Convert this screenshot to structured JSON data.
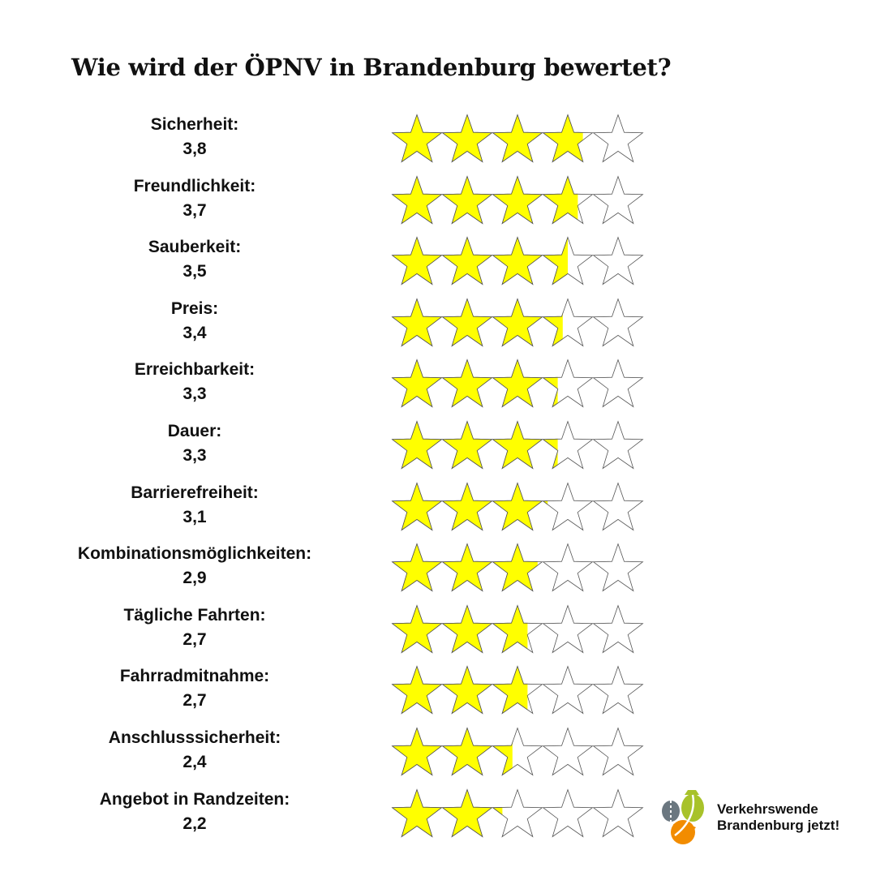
{
  "chart_data": {
    "type": "star-rating",
    "title": "Wie wird der ÖPNV in Brandenburg bewertet?",
    "max": 5,
    "colors": {
      "filled": "#ffff00",
      "empty": "#ffffff",
      "outline": "#555555"
    },
    "items": [
      {
        "label": "Sicherheit:",
        "value_text": "3,8",
        "value": 3.8
      },
      {
        "label": "Freundlichkeit:",
        "value_text": "3,7",
        "value": 3.7
      },
      {
        "label": "Sauberkeit:",
        "value_text": "3,5",
        "value": 3.5
      },
      {
        "label": "Preis:",
        "value_text": "3,4",
        "value": 3.4
      },
      {
        "label": "Erreichbarkeit:",
        "value_text": "3,3",
        "value": 3.3
      },
      {
        "label": "Dauer:",
        "value_text": "3,3",
        "value": 3.3
      },
      {
        "label": "Barrierefreiheit:",
        "value_text": "3,1",
        "value": 3.1
      },
      {
        "label": "Kombinationsmöglichkeiten:",
        "value_text": "2,9",
        "value": 2.9
      },
      {
        "label": "Tägliche Fahrten:",
        "value_text": "2,7",
        "value": 2.7
      },
      {
        "label": "Fahrradmitnahme:",
        "value_text": "2,7",
        "value": 2.7
      },
      {
        "label": "Anschlusssicherheit:",
        "value_text": "2,4",
        "value": 2.4
      },
      {
        "label": "Angebot in Randzeiten:",
        "value_text": "2,2",
        "value": 2.2
      }
    ]
  },
  "logo": {
    "line1": "Verkehrswende",
    "line2": "Brandenburg jetzt!"
  }
}
